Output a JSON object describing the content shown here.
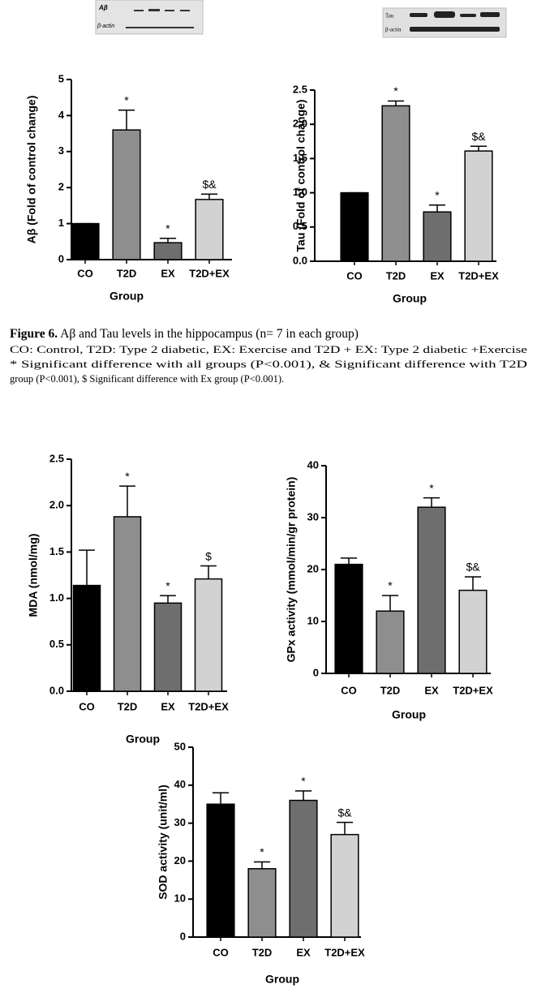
{
  "blots": [
    {
      "labels": [
        "Aβ",
        "β-actin"
      ]
    },
    {
      "labels": [
        "Tau",
        "β-actin"
      ]
    }
  ],
  "caption": {
    "figure_label": "Figure 6.",
    "title": "Aβ and Tau levels in the hippocampus (n= 7 in each group)",
    "lines": [
      "CO: Control, T2D: Type 2 diabetic, EX: Exercise and T2D + EX: Type 2 diabetic +Exercise",
      "* Significant difference with all groups (P<0.001), & Significant difference with T2D",
      "group (P<0.001), $ Significant difference with Ex group (P<0.001)."
    ]
  },
  "chart_data": [
    {
      "type": "bar",
      "ylabel": "Aβ (Fold of control change)",
      "xlabel": "Group",
      "categories": [
        "CO",
        "T2D",
        "EX",
        "T2D+EX"
      ],
      "values": [
        1,
        3.6,
        0.47,
        1.67
      ],
      "errors": [
        0,
        0.55,
        0.12,
        0.15
      ],
      "value_annotations": [
        null,
        "*",
        "*",
        "$&"
      ],
      "colors": [
        "#000000",
        "#8e8e8e",
        "#6e6e6e",
        "#d2d2d2"
      ],
      "ylim": [
        0,
        5
      ],
      "yticks": [
        0,
        1,
        2,
        3,
        4,
        5
      ]
    },
    {
      "type": "bar",
      "ylabel": "Tau (Fold of control change)",
      "xlabel": "Group",
      "categories": [
        "CO",
        "T2D",
        "EX",
        "T2D+EX"
      ],
      "values": [
        1,
        2.27,
        0.72,
        1.61
      ],
      "errors": [
        0,
        0.07,
        0.1,
        0.07
      ],
      "value_annotations": [
        null,
        "*",
        "*",
        "$&"
      ],
      "colors": [
        "#000000",
        "#8e8e8e",
        "#6e6e6e",
        "#d2d2d2"
      ],
      "ylim": [
        0,
        2.5
      ],
      "yticks": [
        {
          "value": 0,
          "label": "0.0"
        },
        0.5,
        {
          "value": 1,
          "label": "1.0"
        },
        1.5,
        {
          "value": 2,
          "label": "2.0"
        },
        2.5
      ]
    },
    {
      "type": "bar",
      "ylabel": "MDA (nmol/mg)",
      "xlabel": "Group",
      "categories": [
        "CO",
        "T2D",
        "EX",
        "T2D+EX"
      ],
      "values": [
        1.14,
        1.88,
        0.95,
        1.21
      ],
      "errors": [
        0.38,
        0.33,
        0.08,
        0.14
      ],
      "value_annotations": [
        null,
        "*",
        "*",
        "$"
      ],
      "colors": [
        "#000000",
        "#8e8e8e",
        "#6e6e6e",
        "#d2d2d2"
      ],
      "ylim": [
        0,
        2.5
      ],
      "yticks": [
        {
          "value": 0,
          "label": "0.0"
        },
        0.5,
        {
          "value": 1,
          "label": "1.0"
        },
        1.5,
        {
          "value": 2,
          "label": "2.0"
        },
        2.5
      ]
    },
    {
      "type": "bar",
      "ylabel": "GPx activity (mmol/min/gr protein)",
      "xlabel": "Group",
      "categories": [
        "CO",
        "T2D",
        "EX",
        "T2D+EX"
      ],
      "values": [
        21,
        12,
        32,
        16
      ],
      "errors": [
        1.2,
        3,
        1.8,
        2.6
      ],
      "value_annotations": [
        null,
        "*",
        "*",
        "$&"
      ],
      "colors": [
        "#000000",
        "#8e8e8e",
        "#6e6e6e",
        "#d2d2d2"
      ],
      "ylim": [
        0,
        40
      ],
      "yticks": [
        0,
        10,
        20,
        30,
        40
      ]
    },
    {
      "type": "bar",
      "ylabel": "SOD activity (unit/ml)",
      "xlabel": "Group",
      "categories": [
        "CO",
        "T2D",
        "EX",
        "T2D+EX"
      ],
      "values": [
        35,
        18,
        36,
        27
      ],
      "errors": [
        3,
        1.8,
        2.5,
        3.2
      ],
      "value_annotations": [
        null,
        "*",
        "*",
        "$&"
      ],
      "colors": [
        "#000000",
        "#8e8e8e",
        "#6e6e6e",
        "#d2d2d2"
      ],
      "ylim": [
        0,
        50
      ],
      "yticks": [
        0,
        10,
        20,
        30,
        40,
        50
      ]
    }
  ]
}
